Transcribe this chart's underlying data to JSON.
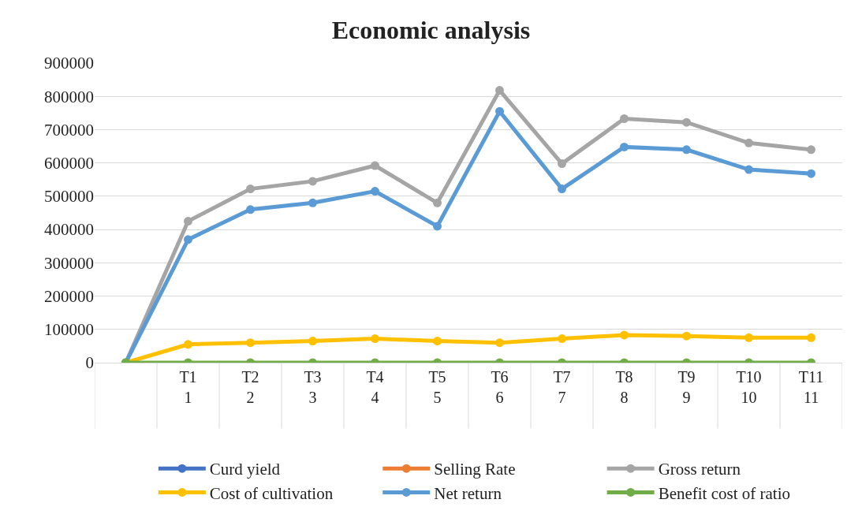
{
  "chart_data": {
    "type": "line",
    "title": "Economic analysis",
    "categories": [
      null,
      "T1\n1",
      "T2\n2",
      "T3\n3",
      "T4\n4",
      "T5\n5",
      "T6\n6",
      "T7\n7",
      "T8\n8",
      "T9\n9",
      "T10\n10",
      "T11\n11"
    ],
    "series": [
      {
        "name": "Curd yield",
        "color": "#4472c4",
        "values": [
          null,
          null,
          null,
          null,
          null,
          null,
          null,
          null,
          null,
          null,
          null,
          null
        ]
      },
      {
        "name": "Selling Rate",
        "color": "#ed7d31",
        "values": [
          null,
          null,
          null,
          null,
          null,
          null,
          null,
          null,
          null,
          null,
          null,
          null
        ]
      },
      {
        "name": "Gross return",
        "color": "#a5a5a5",
        "values": [
          0,
          425000,
          522000,
          545000,
          592000,
          480000,
          818000,
          598000,
          733000,
          722000,
          660000,
          640000
        ]
      },
      {
        "name": "Cost of cultivation",
        "color": "#ffc000",
        "values": [
          0,
          55000,
          60000,
          65000,
          72000,
          65000,
          60000,
          72000,
          83000,
          80000,
          75000,
          75000
        ]
      },
      {
        "name": "Net return",
        "color": "#5b9bd5",
        "values": [
          0,
          370000,
          460000,
          480000,
          515000,
          410000,
          755000,
          522000,
          648000,
          640000,
          580000,
          568000
        ]
      },
      {
        "name": "Benefit cost of ratio",
        "color": "#70ad47",
        "values": [
          0,
          0,
          0,
          0,
          0,
          0,
          0,
          0,
          0,
          0,
          0,
          0
        ]
      }
    ],
    "ylim": [
      0,
      900000
    ],
    "yticks": [
      0,
      100000,
      200000,
      300000,
      400000,
      500000,
      600000,
      700000,
      800000,
      900000
    ],
    "grid": "y",
    "legend": "bottom",
    "marker": "circle",
    "line_style": "solid"
  }
}
